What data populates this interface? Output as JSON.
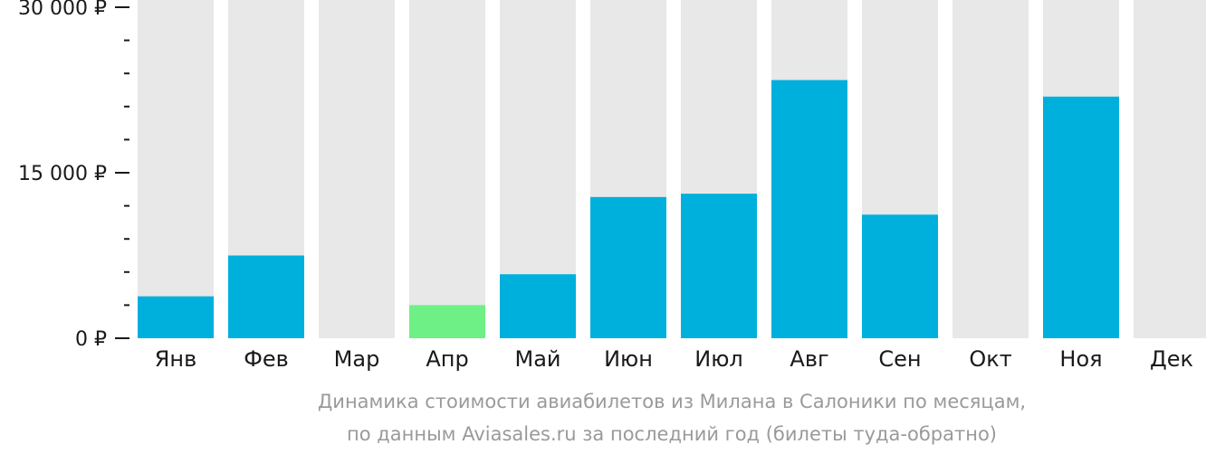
{
  "chart_data": {
    "type": "bar",
    "categories": [
      "Янв",
      "Фев",
      "Мар",
      "Апр",
      "Май",
      "Июн",
      "Июл",
      "Авг",
      "Сен",
      "Окт",
      "Ноя",
      "Дек"
    ],
    "values": [
      3800,
      7500,
      null,
      3000,
      5800,
      12800,
      13100,
      23400,
      11200,
      null,
      21900,
      null
    ],
    "highlight_index": 3,
    "ylim": [
      0,
      30000
    ],
    "yticks": [
      {
        "value": 0,
        "label": "0 ₽"
      },
      {
        "value": 15000,
        "label": "15 000 ₽"
      },
      {
        "value": 30000,
        "label": "30 000 ₽"
      }
    ],
    "minor_tick_step": 3000,
    "title": "",
    "xlabel": "",
    "ylabel": "",
    "grid": false,
    "colors": {
      "bar": "#00b0dc",
      "highlight": "#6ef086",
      "background_column": "#e8e8e8",
      "axis": "#1a1a1a",
      "caption": "#9a9a9a"
    }
  },
  "caption": {
    "line1": "Динамика стоимости авиабилетов из Милана в Салоники по месяцам,",
    "line2": "по данным Aviasales.ru за последний год (билеты туда-обратно)"
  }
}
